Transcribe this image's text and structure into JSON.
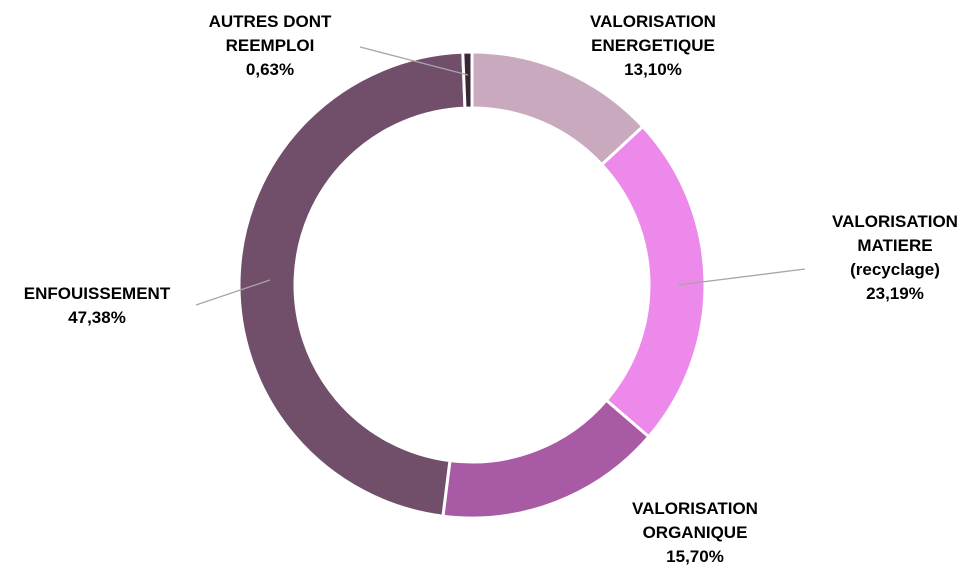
{
  "chart_data": {
    "type": "donut",
    "categories": [
      "VALORISATION ENERGETIQUE",
      "VALORISATION MATIERE (recyclage)",
      "VALORISATION ORGANIQUE",
      "ENFOUISSEMENT",
      "AUTRES DONT REEMPLOI"
    ],
    "values": [
      13.1,
      23.19,
      15.7,
      47.38,
      0.63
    ],
    "value_labels": [
      "13,10%",
      "23,19%",
      "15,70%",
      "47,38%",
      "0,63%"
    ],
    "colors": [
      "#c9a9bd",
      "#ec89ea",
      "#a85aa4",
      "#714f6a",
      "#3b2536"
    ]
  }
}
